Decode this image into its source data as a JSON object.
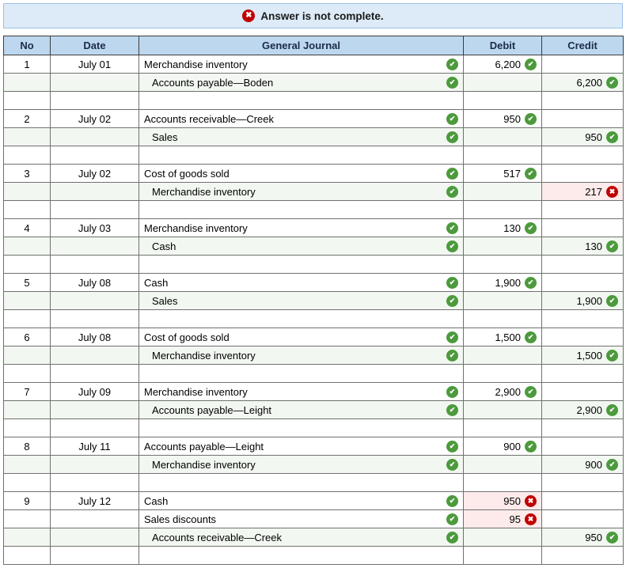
{
  "banner": {
    "text": "Answer is not complete."
  },
  "icons": {
    "correct": {
      "name": "correct-check-icon",
      "glyph": "✔",
      "color": "#4c9a3d"
    },
    "incorrect": {
      "name": "incorrect-x-icon",
      "glyph": "✖",
      "color": "#c00000"
    },
    "banner": {
      "name": "error-x-icon",
      "glyph": "✖",
      "color": "#c00000"
    }
  },
  "colors": {
    "header_bg": "#bdd7ee",
    "banner_bg": "#dcebf7",
    "correct_green": "#4c9a3d",
    "incorrect_red": "#c00000",
    "incorrect_cell_bg": "#fcebea",
    "credit_row_bg": "#f2f8f1"
  },
  "table": {
    "headers": {
      "no": "No",
      "date": "Date",
      "journal": "General Journal",
      "debit": "Debit",
      "credit": "Credit"
    },
    "entries": [
      {
        "no": "1",
        "date": "July 01",
        "lines": [
          {
            "account": "Merchandise inventory",
            "indent": false,
            "account_status": "correct",
            "side": "debit",
            "amount": "6,200",
            "amount_status": "correct"
          },
          {
            "account": "Accounts payable—Boden",
            "indent": true,
            "account_status": "correct",
            "side": "credit",
            "amount": "6,200",
            "amount_status": "correct"
          }
        ]
      },
      {
        "no": "2",
        "date": "July 02",
        "lines": [
          {
            "account": "Accounts receivable—Creek",
            "indent": false,
            "account_status": "correct",
            "side": "debit",
            "amount": "950",
            "amount_status": "correct"
          },
          {
            "account": "Sales",
            "indent": true,
            "account_status": "correct",
            "side": "credit",
            "amount": "950",
            "amount_status": "correct"
          }
        ]
      },
      {
        "no": "3",
        "date": "July 02",
        "lines": [
          {
            "account": "Cost of goods sold",
            "indent": false,
            "account_status": "correct",
            "side": "debit",
            "amount": "517",
            "amount_status": "correct"
          },
          {
            "account": "Merchandise inventory",
            "indent": true,
            "account_status": "correct",
            "side": "credit",
            "amount": "217",
            "amount_status": "incorrect"
          }
        ]
      },
      {
        "no": "4",
        "date": "July 03",
        "lines": [
          {
            "account": "Merchandise inventory",
            "indent": false,
            "account_status": "correct",
            "side": "debit",
            "amount": "130",
            "amount_status": "correct"
          },
          {
            "account": "Cash",
            "indent": true,
            "account_status": "correct",
            "side": "credit",
            "amount": "130",
            "amount_status": "correct"
          }
        ]
      },
      {
        "no": "5",
        "date": "July 08",
        "lines": [
          {
            "account": "Cash",
            "indent": false,
            "account_status": "correct",
            "side": "debit",
            "amount": "1,900",
            "amount_status": "correct"
          },
          {
            "account": "Sales",
            "indent": true,
            "account_status": "correct",
            "side": "credit",
            "amount": "1,900",
            "amount_status": "correct"
          }
        ]
      },
      {
        "no": "6",
        "date": "July 08",
        "lines": [
          {
            "account": "Cost of goods sold",
            "indent": false,
            "account_status": "correct",
            "side": "debit",
            "amount": "1,500",
            "amount_status": "correct"
          },
          {
            "account": "Merchandise inventory",
            "indent": true,
            "account_status": "correct",
            "side": "credit",
            "amount": "1,500",
            "amount_status": "correct"
          }
        ]
      },
      {
        "no": "7",
        "date": "July 09",
        "lines": [
          {
            "account": "Merchandise inventory",
            "indent": false,
            "account_status": "correct",
            "side": "debit",
            "amount": "2,900",
            "amount_status": "correct"
          },
          {
            "account": "Accounts payable—Leight",
            "indent": true,
            "account_status": "correct",
            "side": "credit",
            "amount": "2,900",
            "amount_status": "correct"
          }
        ]
      },
      {
        "no": "8",
        "date": "July 11",
        "lines": [
          {
            "account": "Accounts payable—Leight",
            "indent": false,
            "account_status": "correct",
            "side": "debit",
            "amount": "900",
            "amount_status": "correct"
          },
          {
            "account": "Merchandise inventory",
            "indent": true,
            "account_status": "correct",
            "side": "credit",
            "amount": "900",
            "amount_status": "correct"
          }
        ]
      },
      {
        "no": "9",
        "date": "July 12",
        "lines": [
          {
            "account": "Cash",
            "indent": false,
            "account_status": "correct",
            "side": "debit",
            "amount": "950",
            "amount_status": "incorrect"
          },
          {
            "account": "Sales discounts",
            "indent": false,
            "account_status": "correct",
            "side": "debit",
            "amount": "95",
            "amount_status": "incorrect"
          },
          {
            "account": "Accounts receivable—Creek",
            "indent": true,
            "account_status": "correct",
            "side": "credit",
            "amount": "950",
            "amount_status": "correct"
          }
        ]
      }
    ]
  }
}
